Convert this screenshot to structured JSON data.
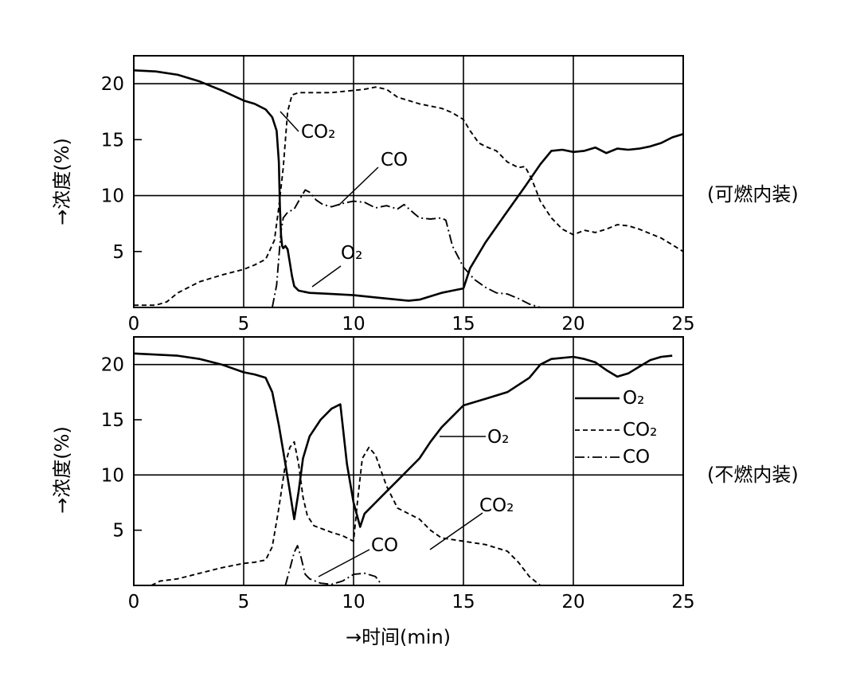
{
  "chart_data": [
    {
      "type": "line",
      "side_label": "(可燃内装)",
      "ylabel": "→浓度(%)",
      "xlabel": "",
      "xlim": [
        0,
        25
      ],
      "ylim": [
        0,
        22.5
      ],
      "x_ticks": [
        "0",
        "5",
        "10",
        "15",
        "20",
        "25"
      ],
      "y_ticks": [
        "5",
        "10",
        "15",
        "20"
      ],
      "grid": true,
      "series": [
        {
          "name": "O2",
          "style": "solid",
          "x": [
            0,
            1,
            2,
            3,
            4,
            5,
            5.5,
            6,
            6.3,
            6.5,
            6.6,
            6.65,
            6.7,
            6.75,
            6.8,
            6.9,
            7.0,
            7.1,
            7.2,
            7.3,
            7.5,
            8,
            9,
            10,
            11,
            12,
            12.5,
            13,
            13.5,
            14,
            14.5,
            15
          ],
          "y": [
            21.2,
            21.1,
            20.8,
            20.2,
            19.4,
            18.5,
            18.2,
            17.7,
            17.0,
            15.8,
            13.0,
            9.0,
            6.5,
            5.5,
            5.3,
            5.5,
            5.2,
            4.0,
            2.8,
            1.9,
            1.5,
            1.3,
            1.2,
            1.1,
            0.9,
            0.7,
            0.6,
            0.7,
            1.0,
            1.3,
            1.5,
            1.7
          ]
        },
        {
          "name": "O2",
          "style": "solid",
          "x": [
            15,
            15.3,
            16,
            17,
            17.8,
            18.5,
            19,
            19.5,
            20,
            20.5,
            21,
            21.5,
            22,
            22.5,
            23,
            23.5,
            24,
            24.5,
            25
          ],
          "y": [
            1.7,
            3.5,
            5.8,
            8.6,
            10.8,
            12.8,
            14.0,
            14.1,
            13.9,
            14.0,
            14.3,
            13.8,
            14.2,
            14.1,
            14.2,
            14.4,
            14.7,
            15.2,
            15.5
          ]
        },
        {
          "name": "CO2",
          "style": "dashed",
          "x": [
            0,
            1,
            1.5,
            2,
            3,
            4,
            5,
            5.5,
            6,
            6.4,
            6.6,
            6.8,
            7.0,
            7.2,
            7.5,
            8,
            9,
            10,
            10.5,
            11,
            11.5,
            12,
            13,
            14,
            14.5,
            15,
            15.3,
            15.7,
            16,
            16.5,
            17,
            17.5,
            17.8,
            18.1,
            18.5,
            19,
            19.5,
            20,
            20.5,
            21,
            21.5,
            22,
            22.5,
            23,
            24,
            25
          ],
          "y": [
            0.2,
            0.2,
            0.5,
            1.3,
            2.3,
            2.9,
            3.4,
            3.8,
            4.3,
            6.0,
            9.0,
            12.5,
            17.5,
            19.0,
            19.2,
            19.2,
            19.2,
            19.4,
            19.5,
            19.7,
            19.5,
            18.8,
            18.2,
            17.8,
            17.4,
            16.8,
            15.8,
            14.7,
            14.4,
            14.0,
            13.0,
            12.5,
            12.6,
            11.5,
            9.5,
            8.0,
            7.0,
            6.5,
            6.9,
            6.7,
            7.0,
            7.4,
            7.3,
            7.0,
            6.2,
            5.0
          ]
        },
        {
          "name": "CO",
          "style": "dashdot",
          "x": [
            6.3,
            6.5,
            6.6,
            6.7,
            6.8,
            7.0,
            7.3,
            7.5,
            7.8,
            8.0,
            8.3,
            8.6,
            9.0,
            9.5,
            10,
            10.5,
            11,
            11.5,
            12,
            12.3,
            12.7,
            13,
            13.5,
            14,
            14.2,
            14.5,
            15,
            15.5,
            16,
            16.5,
            17,
            17.5,
            18,
            18.5
          ],
          "y": [
            0,
            2.0,
            4.5,
            6.8,
            8.0,
            8.5,
            8.8,
            9.5,
            10.5,
            10.3,
            9.6,
            9.2,
            9.0,
            9.3,
            9.5,
            9.4,
            8.9,
            9.1,
            8.8,
            9.2,
            8.5,
            8.0,
            7.9,
            8.0,
            7.8,
            5.5,
            3.6,
            2.5,
            1.8,
            1.3,
            1.2,
            0.8,
            0.3,
            0
          ]
        }
      ],
      "annotations": [
        {
          "text": "CO₂",
          "series": "CO2"
        },
        {
          "text": "CO",
          "series": "CO"
        },
        {
          "text": "O₂",
          "series": "O2"
        }
      ]
    },
    {
      "type": "line",
      "side_label": "(不燃内装)",
      "ylabel": "→浓度(%)",
      "xlabel": "→时间(min)",
      "xlim": [
        0,
        25
      ],
      "ylim": [
        0,
        22.5
      ],
      "x_ticks": [
        "0",
        "5",
        "10",
        "15",
        "20",
        "25"
      ],
      "y_ticks": [
        "5",
        "10",
        "15",
        "20"
      ],
      "grid": true,
      "legend": [
        {
          "label": "O₂",
          "style": "solid"
        },
        {
          "label": "CO₂",
          "style": "dashed"
        },
        {
          "label": "CO",
          "style": "dashdot"
        }
      ],
      "series": [
        {
          "name": "O2",
          "style": "solid",
          "x": [
            0,
            1,
            2,
            3,
            4,
            5,
            5.5,
            6,
            6.3,
            6.6,
            6.9,
            7.1,
            7.3,
            7.5,
            7.7,
            8.0,
            8.5,
            9,
            9.4,
            9.7,
            10.0,
            10.3,
            10.5,
            11,
            11.5,
            12,
            13,
            13.5,
            14,
            14.5,
            15,
            16,
            17,
            18,
            18.5,
            19,
            20,
            20.5,
            21,
            21.5,
            22,
            22.5,
            23,
            23.5,
            24,
            24.5
          ],
          "y": [
            21.0,
            20.9,
            20.8,
            20.5,
            20.0,
            19.3,
            19.1,
            18.8,
            17.5,
            14.5,
            11.0,
            8.5,
            6.0,
            8.5,
            11.5,
            13.5,
            15.0,
            16.0,
            16.4,
            11.0,
            7.5,
            5.3,
            6.5,
            7.5,
            8.5,
            9.5,
            11.5,
            13.0,
            14.3,
            15.3,
            16.3,
            16.9,
            17.5,
            18.8,
            20.0,
            20.5,
            20.7,
            20.5,
            20.2,
            19.5,
            18.9,
            19.2,
            19.8,
            20.4,
            20.7,
            20.8
          ]
        },
        {
          "name": "CO2",
          "style": "dashed",
          "x": [
            0.8,
            1.2,
            2,
            3,
            4,
            5,
            5.5,
            6,
            6.3,
            6.6,
            6.9,
            7.1,
            7.3,
            7.5,
            7.7,
            7.9,
            8.2,
            8.6,
            9,
            9.5,
            10,
            10.2,
            10.4,
            10.7,
            11,
            11.5,
            12,
            13,
            13.5,
            14,
            15,
            16,
            17,
            17.5,
            18,
            18.5
          ],
          "y": [
            0,
            0.4,
            0.6,
            1.1,
            1.6,
            2.0,
            2.1,
            2.3,
            3.5,
            7.0,
            11.0,
            12.5,
            13.0,
            11.0,
            8.0,
            6.3,
            5.4,
            5.1,
            4.8,
            4.5,
            4.0,
            8.0,
            11.5,
            12.5,
            11.8,
            9.0,
            7.0,
            6.0,
            5.0,
            4.3,
            4.0,
            3.7,
            3.1,
            2.1,
            0.8,
            0
          ]
        },
        {
          "name": "CO",
          "style": "dashdot",
          "x": [
            6.9,
            7.1,
            7.3,
            7.45,
            7.6,
            7.8,
            8.0,
            8.5,
            9.0,
            9.5,
            10.0,
            10.5,
            11.0,
            11.3
          ],
          "y": [
            0,
            1.5,
            3.0,
            3.6,
            2.6,
            1.0,
            0.6,
            0.2,
            0.1,
            0.4,
            1.0,
            1.1,
            0.8,
            0
          ]
        }
      ],
      "annotations": [
        {
          "text": "O₂",
          "series": "O2"
        },
        {
          "text": "CO₂",
          "series": "CO2"
        },
        {
          "text": "CO",
          "series": "CO"
        }
      ]
    }
  ]
}
